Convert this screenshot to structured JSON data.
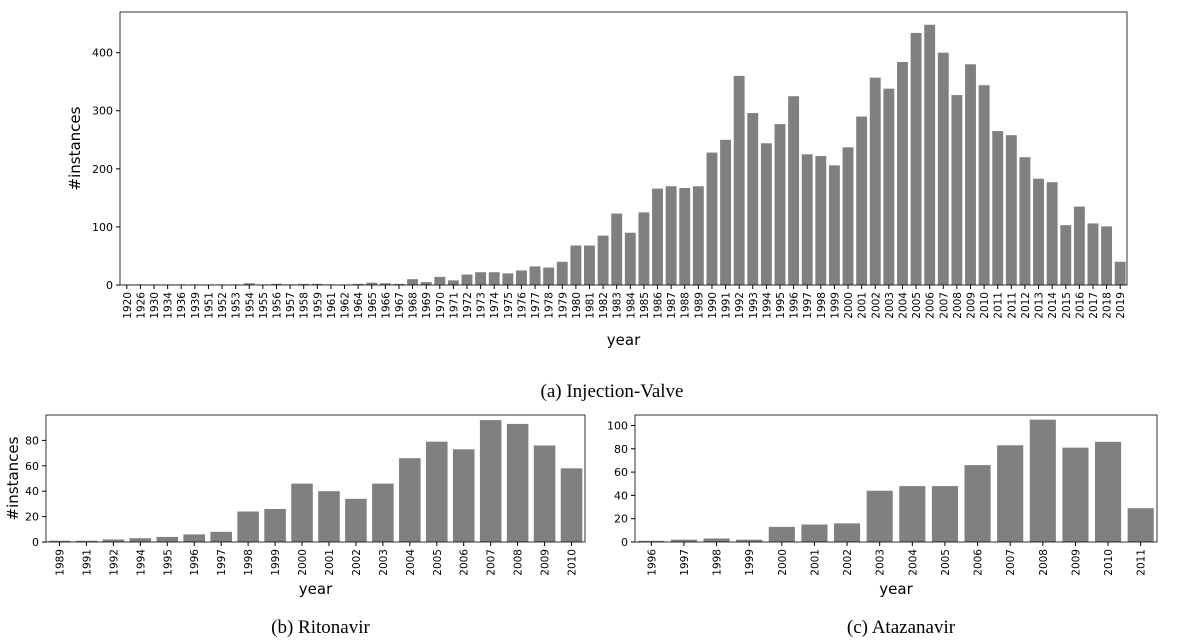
{
  "chart_data": [
    {
      "type": "bar",
      "caption": "(a) Injection-Valve",
      "xlabel": "year",
      "ylabel": "#instances",
      "color": "#808080",
      "categories": [
        "1920",
        "1926",
        "1930",
        "1934",
        "1936",
        "1939",
        "1951",
        "1952",
        "1953",
        "1954",
        "1955",
        "1956",
        "1957",
        "1958",
        "1959",
        "1961",
        "1962",
        "1964",
        "1965",
        "1966",
        "1967",
        "1968",
        "1969",
        "1970",
        "1971",
        "1972",
        "1973",
        "1974",
        "1975",
        "1976",
        "1977",
        "1978",
        "1979",
        "1980",
        "1981",
        "1982",
        "1983",
        "1984",
        "1985",
        "1986",
        "1987",
        "1988",
        "1989",
        "1990",
        "1991",
        "1992",
        "1993",
        "1994",
        "1995",
        "1996",
        "1997",
        "1998",
        "1999",
        "2000",
        "2001",
        "2002",
        "2003",
        "2004",
        "2005",
        "2006",
        "2007",
        "2008",
        "2009",
        "2010",
        "2011",
        "2011",
        "2012",
        "2013",
        "2014",
        "2015",
        "2016",
        "2017",
        "2018",
        "2019"
      ],
      "values": [
        1,
        1,
        1,
        1,
        1,
        1,
        1,
        1,
        1,
        3,
        1,
        2,
        1,
        2,
        2,
        1,
        1,
        2,
        4,
        3,
        2,
        10,
        5,
        14,
        8,
        18,
        22,
        22,
        20,
        25,
        32,
        30,
        40,
        68,
        68,
        85,
        123,
        90,
        125,
        166,
        170,
        167,
        170,
        228,
        250,
        360,
        296,
        244,
        277,
        325,
        225,
        222,
        206,
        237,
        290,
        357,
        338,
        384,
        434,
        448,
        400,
        327,
        380,
        344,
        265,
        258,
        220,
        183,
        177,
        103,
        135,
        106,
        101,
        40
      ],
      "ylim": [
        0,
        470
      ],
      "yticks": [
        0,
        100,
        200,
        300,
        400
      ]
    },
    {
      "type": "bar",
      "caption": "(b) Ritonavir",
      "xlabel": "year",
      "ylabel": "#instances",
      "color": "#808080",
      "categories": [
        "1989",
        "1991",
        "1992",
        "1994",
        "1995",
        "1996",
        "1997",
        "1998",
        "1999",
        "2000",
        "2001",
        "2002",
        "2003",
        "2004",
        "2005",
        "2006",
        "2007",
        "2008",
        "2009",
        "2010"
      ],
      "values": [
        1,
        1,
        2,
        3,
        4,
        6,
        8,
        24,
        26,
        46,
        40,
        34,
        46,
        66,
        79,
        73,
        96,
        93,
        76,
        58
      ],
      "ylim": [
        0,
        100
      ],
      "yticks": [
        0,
        20,
        40,
        60,
        80
      ]
    },
    {
      "type": "bar",
      "caption": "(c) Atazanavir",
      "xlabel": "year",
      "color": "#808080",
      "categories": [
        "1996",
        "1997",
        "1998",
        "1999",
        "2000",
        "2001",
        "2002",
        "2003",
        "2004",
        "2005",
        "2006",
        "2007",
        "2008",
        "2009",
        "2010",
        "2011"
      ],
      "values": [
        1,
        2,
        3,
        2,
        13,
        15,
        16,
        44,
        48,
        48,
        66,
        83,
        105,
        81,
        86,
        29
      ],
      "ylim": [
        0,
        109
      ],
      "yticks": [
        0,
        20,
        40,
        60,
        80,
        100
      ]
    }
  ]
}
